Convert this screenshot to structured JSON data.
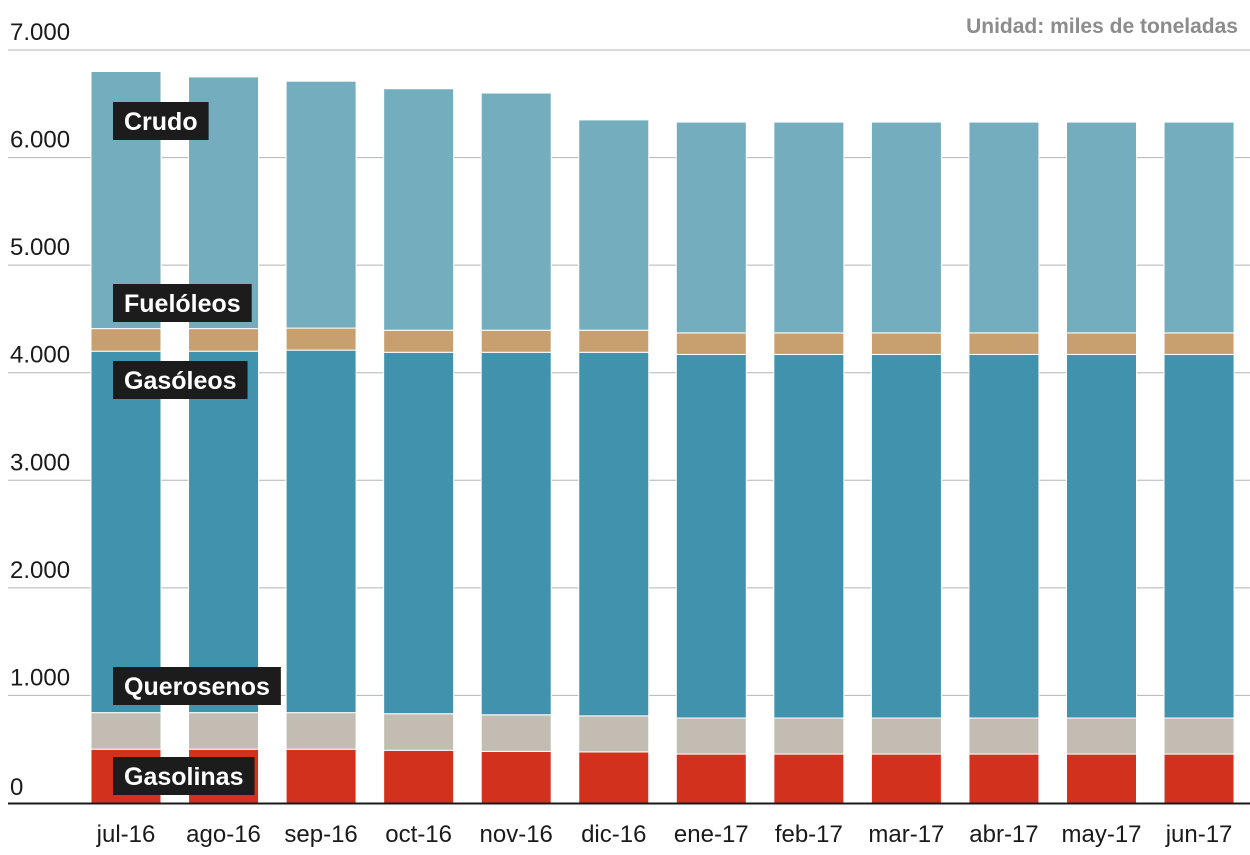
{
  "unit_label": "Unidad: miles de toneladas",
  "colors": {
    "Gasolinas": "#d2311d",
    "Querosenos": "#c2bcb2",
    "Gasóleos": "#4192ac",
    "Fuelóleos": "#c8a070",
    "Crudo": "#73adbe",
    "grid": "#b5b5b5",
    "tag_bg": "#1c1c1c"
  },
  "chart_data": {
    "type": "bar",
    "stacked": true,
    "categories": [
      "jul-16",
      "ago-16",
      "sep-16",
      "oct-16",
      "nov-16",
      "dic-16",
      "ene-17",
      "feb-17",
      "mar-17",
      "abr-17",
      "may-17",
      "jun-17"
    ],
    "series": [
      {
        "name": "Gasolinas",
        "values": [
          500,
          500,
          500,
          490,
          480,
          475,
          455,
          455,
          455,
          455,
          455,
          455
        ]
      },
      {
        "name": "Querosenos",
        "values": [
          340,
          340,
          340,
          340,
          340,
          335,
          335,
          335,
          335,
          335,
          335,
          335
        ]
      },
      {
        "name": "Gasóleos",
        "values": [
          3360,
          3360,
          3370,
          3360,
          3370,
          3380,
          3380,
          3380,
          3380,
          3380,
          3380,
          3380
        ]
      },
      {
        "name": "Fuelóleos",
        "values": [
          210,
          210,
          205,
          205,
          205,
          205,
          200,
          200,
          200,
          200,
          200,
          200
        ]
      },
      {
        "name": "Crudo",
        "values": [
          2390,
          2340,
          2295,
          2245,
          2205,
          1955,
          1960,
          1960,
          1960,
          1960,
          1960,
          1960
        ]
      }
    ],
    "ylim": [
      0,
      7000
    ],
    "yticks": [
      0,
      1000,
      2000,
      3000,
      4000,
      5000,
      6000,
      7000
    ],
    "ytick_labels": [
      "0",
      "1.000",
      "2.000",
      "3.000",
      "4.000",
      "5.000",
      "6.000",
      "7.000"
    ],
    "grid": true,
    "legend": "inline labels on first bar"
  }
}
